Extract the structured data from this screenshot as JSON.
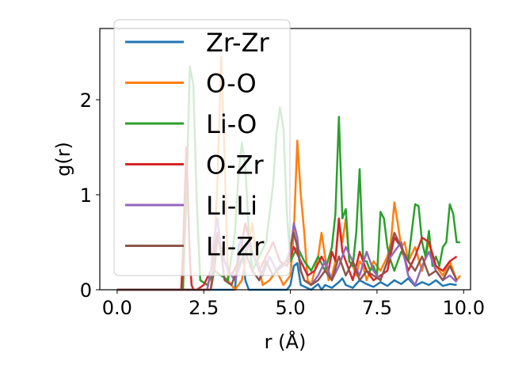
{
  "chart_data": {
    "type": "line",
    "xlabel": "r (Å)",
    "ylabel": "g(r)",
    "xlim": [
      -0.5,
      10.2
    ],
    "ylim": [
      0,
      2.75
    ],
    "xticks": [
      0.0,
      2.5,
      5.0,
      7.5,
      10.0
    ],
    "xtick_labels": [
      "0.0",
      "2.5",
      "5.0",
      "7.5",
      "10.0"
    ],
    "yticks": [
      0,
      1,
      2
    ],
    "ytick_labels": [
      "0",
      "1",
      "2"
    ],
    "legend_position": "upper-left",
    "grid": false,
    "series": [
      {
        "name": "Zr-Zr",
        "color": "#1f77b4",
        "x": [
          0,
          3.4,
          3.5,
          3.6,
          3.7,
          3.8,
          4.9,
          5.0,
          5.1,
          5.2,
          5.3,
          5.6,
          5.8,
          5.9,
          6.0,
          6.2,
          6.4,
          6.5,
          6.6,
          6.8,
          7.0,
          7.2,
          7.4,
          7.6,
          7.8,
          8.0,
          8.2,
          8.4,
          8.6,
          8.8,
          9.0,
          9.2,
          9.4,
          9.6,
          9.8
        ],
        "y": [
          0,
          0,
          0.45,
          0.55,
          0.1,
          0,
          0,
          0.05,
          0.25,
          0.28,
          0.05,
          0,
          0.06,
          0,
          0.05,
          0.02,
          0.08,
          0.12,
          0.05,
          0.02,
          0.1,
          0.06,
          0.03,
          0.08,
          0.04,
          0.1,
          0.06,
          0.12,
          0.04,
          0.08,
          0.05,
          0.1,
          0.04,
          0.06,
          0.05
        ]
      },
      {
        "name": "O-O",
        "color": "#ff7f0e",
        "x": [
          0,
          2.7,
          2.8,
          2.9,
          3.0,
          3.1,
          3.2,
          3.4,
          3.6,
          3.8,
          3.9,
          4.0,
          4.2,
          4.4,
          4.6,
          4.8,
          5.0,
          5.1,
          5.2,
          5.3,
          5.4,
          5.5,
          5.6,
          5.7,
          5.8,
          5.9,
          6.0,
          6.1,
          6.2,
          6.3,
          6.4,
          6.5,
          6.6,
          6.7,
          6.8,
          6.9,
          7.0,
          7.1,
          7.2,
          7.4,
          7.6,
          7.8,
          7.9,
          8.0,
          8.1,
          8.2,
          8.3,
          8.4,
          8.6,
          8.8,
          9.0,
          9.2,
          9.4,
          9.6,
          9.8,
          9.9
        ],
        "y": [
          0,
          0,
          0.35,
          1.2,
          2.45,
          1.4,
          0.1,
          0,
          0.1,
          0.5,
          0.7,
          0.4,
          0.05,
          0.1,
          0.2,
          0.05,
          0.15,
          0.6,
          1.57,
          1.0,
          0.6,
          0.1,
          0.05,
          0.2,
          0.35,
          0.6,
          0.35,
          0.1,
          0.15,
          0.3,
          0.7,
          0.5,
          0.75,
          0.3,
          0.25,
          0.15,
          0.3,
          0.25,
          0.1,
          0.3,
          0.2,
          0.35,
          0.5,
          0.92,
          0.7,
          0.45,
          0.5,
          0.3,
          0.45,
          0.2,
          0.5,
          0.25,
          0.15,
          0.3,
          0.1,
          0.15
        ]
      },
      {
        "name": "Li-O",
        "color": "#2ca02c",
        "x": [
          0,
          1.9,
          2.0,
          2.1,
          2.2,
          2.3,
          2.4,
          2.6,
          2.8,
          3.0,
          3.2,
          3.4,
          3.5,
          3.6,
          3.7,
          3.8,
          3.9,
          4.1,
          4.3,
          4.5,
          4.6,
          4.7,
          4.8,
          4.9,
          5.0,
          5.2,
          5.4,
          5.6,
          5.8,
          6.0,
          6.2,
          6.3,
          6.4,
          6.5,
          6.6,
          6.7,
          6.8,
          6.9,
          7.0,
          7.1,
          7.2,
          7.3,
          7.4,
          7.5,
          7.6,
          7.7,
          7.8,
          7.9,
          8.0,
          8.2,
          8.4,
          8.5,
          8.6,
          8.7,
          8.8,
          8.9,
          9.0,
          9.1,
          9.2,
          9.3,
          9.4,
          9.5,
          9.6,
          9.7,
          9.8,
          9.9
        ],
        "y": [
          0,
          0,
          1.0,
          2.35,
          2.15,
          0.9,
          0.1,
          0.05,
          0.2,
          0.15,
          0.1,
          0.6,
          1.2,
          1.55,
          1.3,
          0.6,
          0.2,
          0.35,
          0.5,
          1.1,
          1.65,
          1.92,
          1.7,
          0.8,
          0.3,
          0.45,
          0.3,
          0.2,
          0.35,
          0.2,
          0.45,
          0.8,
          1.82,
          0.75,
          0.85,
          0.3,
          0.25,
          0.6,
          1.27,
          0.3,
          0.3,
          0.2,
          0.25,
          0.15,
          0.82,
          0.75,
          0.45,
          0.3,
          0.2,
          0.4,
          0.3,
          0.6,
          0.9,
          0.88,
          0.5,
          0.35,
          0.62,
          0.25,
          0.35,
          0.25,
          0.45,
          0.5,
          0.9,
          0.8,
          0.5,
          0.5
        ]
      },
      {
        "name": "O-Zr",
        "color": "#d62728",
        "x": [
          0,
          1.85,
          1.9,
          1.95,
          2.0,
          2.05,
          2.1,
          2.15,
          2.2,
          2.3,
          2.5,
          2.7,
          2.9,
          3.1,
          3.3,
          3.5,
          3.7,
          3.9,
          4.1,
          4.3,
          4.5,
          4.7,
          4.9,
          5.1,
          5.3,
          5.5,
          5.7,
          5.9,
          6.1,
          6.2,
          6.3,
          6.4,
          6.5,
          6.6,
          6.8,
          7.0,
          7.2,
          7.4,
          7.6,
          7.8,
          8.0,
          8.2,
          8.4,
          8.6,
          8.8,
          9.0,
          9.2,
          9.4,
          9.6,
          9.8
        ],
        "y": [
          0,
          0,
          0.4,
          1.0,
          1.5,
          0.9,
          0.3,
          0.05,
          0,
          0,
          0.05,
          0.2,
          0.6,
          0.3,
          0.15,
          0.3,
          0.7,
          0.4,
          0.2,
          0.35,
          0.5,
          0.3,
          0.25,
          0.45,
          0.3,
          0.15,
          0.2,
          0.35,
          0.2,
          0.4,
          0.3,
          0.75,
          0.4,
          0.3,
          0.1,
          0.4,
          0.2,
          0.1,
          0.15,
          0.2,
          0.55,
          0.45,
          0.2,
          0.35,
          0.55,
          0.5,
          0.25,
          0.2,
          0.3,
          0.35
        ]
      },
      {
        "name": "Li-Li",
        "color": "#9467bd",
        "x": [
          0,
          2.6,
          2.7,
          2.8,
          2.9,
          3.0,
          3.2,
          3.4,
          3.6,
          3.8,
          4.0,
          4.2,
          4.4,
          4.6,
          4.8,
          5.0,
          5.1,
          5.2,
          5.3,
          5.4,
          5.6,
          5.8,
          6.0,
          6.2,
          6.4,
          6.6,
          6.8,
          7.0,
          7.2,
          7.4,
          7.6,
          7.8,
          8.0,
          8.2,
          8.4,
          8.6,
          8.8,
          9.0,
          9.2,
          9.4,
          9.6,
          9.8
        ],
        "y": [
          0,
          0,
          0.2,
          0.55,
          0.75,
          0.4,
          0.2,
          0.1,
          0.3,
          0.5,
          0.3,
          0.15,
          0.35,
          0.2,
          0.25,
          0.4,
          0.7,
          0.55,
          0.2,
          0.1,
          0.05,
          0.15,
          0.3,
          0.1,
          0.25,
          0.45,
          0.3,
          0.15,
          0.4,
          0.2,
          0.1,
          0.3,
          0.4,
          0.5,
          0.15,
          0.05,
          0.25,
          0.4,
          0.2,
          0.1,
          0.15,
          0.08
        ]
      },
      {
        "name": "Li-Zr",
        "color": "#8c564b",
        "x": [
          0,
          2.7,
          2.8,
          2.9,
          3.0,
          3.1,
          3.3,
          3.5,
          3.7,
          3.9,
          4.1,
          4.3,
          4.5,
          4.7,
          4.9,
          5.1,
          5.2,
          5.3,
          5.4,
          5.6,
          5.8,
          6.0,
          6.2,
          6.4,
          6.6,
          6.8,
          7.0,
          7.2,
          7.4,
          7.6,
          7.8,
          8.0,
          8.2,
          8.4,
          8.6,
          8.8,
          9.0,
          9.2,
          9.4,
          9.6,
          9.8
        ],
        "y": [
          0,
          0,
          0.2,
          0.55,
          0.4,
          0.1,
          0.05,
          0.25,
          0.4,
          0.2,
          0.1,
          0.3,
          0.15,
          0.25,
          0.3,
          0.6,
          0.45,
          0.2,
          0.1,
          0.05,
          0.1,
          0.2,
          0.1,
          0.35,
          0.15,
          0.3,
          0.1,
          0.2,
          0.15,
          0.1,
          0.3,
          0.6,
          0.45,
          0.3,
          0.2,
          0.35,
          0.15,
          0.2,
          0.1,
          0.25,
          0.1
        ]
      }
    ]
  }
}
